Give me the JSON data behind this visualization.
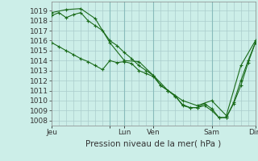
{
  "background_color": "#cceee8",
  "grid_color": "#aacccc",
  "line_color": "#1a6b1a",
  "marker_color": "#1a6b1a",
  "series1_x": [
    0,
    0.5,
    1.0,
    1.5,
    2.0,
    2.5,
    3.0,
    3.5,
    4.0,
    4.5,
    5.0,
    5.5,
    6.0,
    6.5,
    7.0,
    7.5,
    8.0,
    8.5,
    9.0,
    9.5,
    10.0,
    10.5,
    11.0,
    11.5,
    12.0,
    12.5,
    13.0,
    13.5,
    14.0
  ],
  "series1_y": [
    1018.5,
    1018.8,
    1018.3,
    1018.6,
    1018.8,
    1018.0,
    1017.5,
    1017.0,
    1016.0,
    1015.5,
    1014.8,
    1014.2,
    1013.5,
    1013.0,
    1012.5,
    1011.5,
    1011.0,
    1010.5,
    1009.5,
    1009.3,
    1009.3,
    1009.7,
    1009.2,
    1008.3,
    1008.3,
    1009.7,
    1011.5,
    1013.8,
    1015.8
  ],
  "series2_x": [
    0,
    0.5,
    1.0,
    1.5,
    2.0,
    2.5,
    3.0,
    3.5,
    4.0,
    4.5,
    5.0,
    5.5,
    6.0,
    6.5,
    7.0,
    7.5,
    8.0,
    8.5,
    9.0,
    9.5,
    10.0,
    10.5,
    11.0,
    11.5,
    12.0,
    12.5,
    13.0,
    13.5,
    14.0
  ],
  "series2_y": [
    1015.8,
    1015.4,
    1015.0,
    1014.6,
    1014.2,
    1013.9,
    1013.5,
    1013.1,
    1014.0,
    1013.8,
    1013.9,
    1013.7,
    1013.0,
    1012.7,
    1012.4,
    1011.5,
    1011.0,
    1010.4,
    1009.6,
    1009.3,
    1009.3,
    1009.5,
    1009.0,
    1008.3,
    1008.3,
    1009.8,
    1012.0,
    1014.0,
    1015.8
  ],
  "series3_x": [
    0,
    1,
    2,
    3,
    4,
    5,
    6,
    7,
    8,
    9,
    10,
    11,
    12,
    13,
    14
  ],
  "series3_y": [
    1018.8,
    1019.1,
    1019.2,
    1018.2,
    1015.8,
    1014.0,
    1013.9,
    1012.5,
    1011.0,
    1010.0,
    1009.5,
    1010.0,
    1008.5,
    1013.5,
    1016.0
  ],
  "ylim": [
    1007.5,
    1019.9
  ],
  "xlim": [
    0,
    14.0
  ],
  "yticks": [
    1008,
    1009,
    1010,
    1011,
    1012,
    1013,
    1014,
    1015,
    1016,
    1017,
    1018,
    1019
  ],
  "xlabel": "Pression niveau de la mer( hPa )",
  "xlabel_fontsize": 7.5,
  "tick_fontsize": 6.5,
  "day_positions": [
    0,
    4,
    5,
    7,
    11,
    14
  ],
  "day_labels": [
    "Jeu",
    "",
    "Lun",
    "Ven",
    "Sam",
    "Dim"
  ],
  "vline_positions": [
    4,
    5,
    7,
    11,
    14
  ]
}
